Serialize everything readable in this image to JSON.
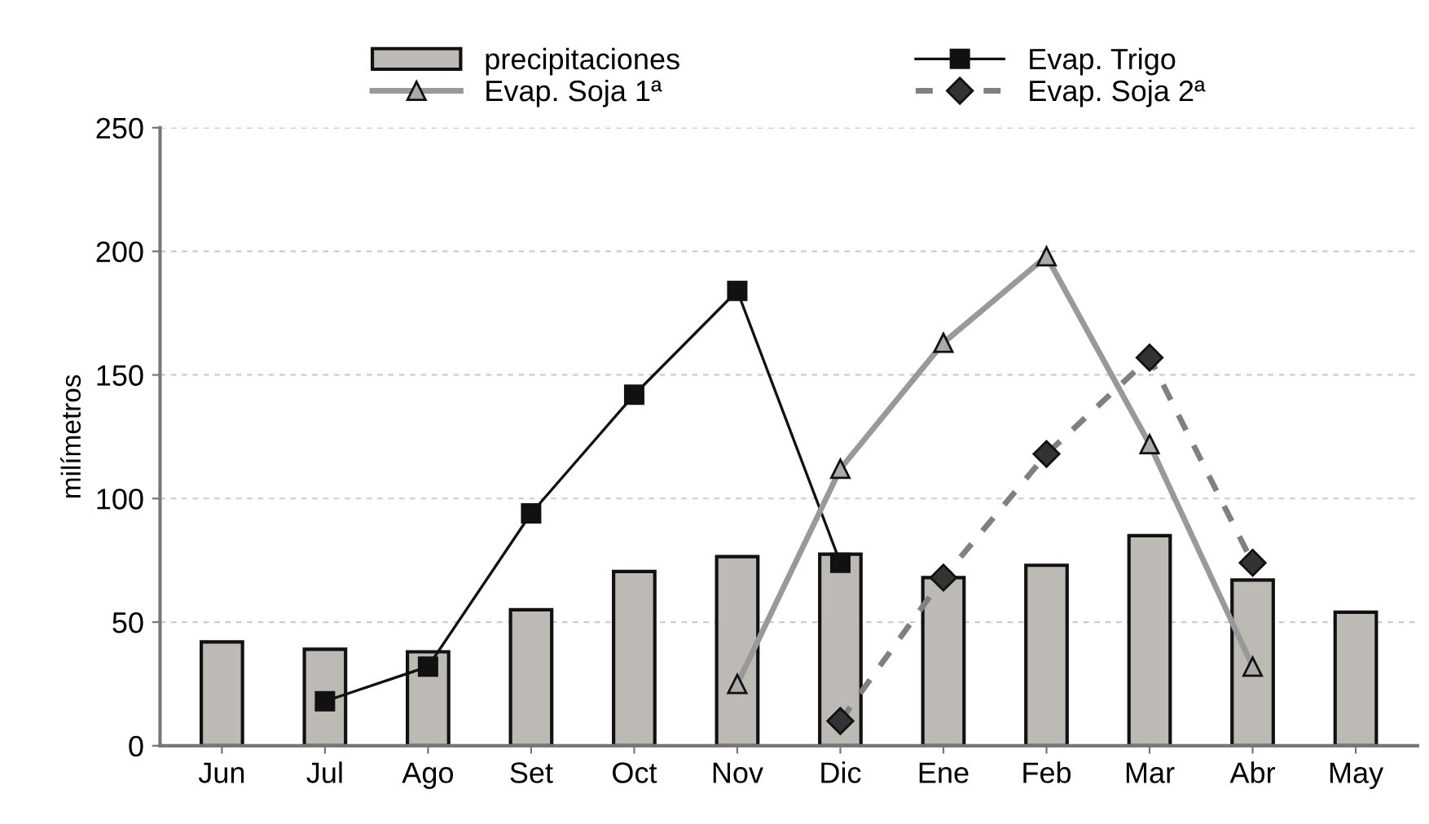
{
  "chart_data": {
    "type": "bar",
    "ylabel": "milímetros",
    "categories": [
      "Jun",
      "Jul",
      "Ago",
      "Set",
      "Oct",
      "Nov",
      "Dic",
      "Ene",
      "Feb",
      "Mar",
      "Abr",
      "May"
    ],
    "series": [
      {
        "name": "precipitaciones",
        "color": "#bdb9b4",
        "values": [
          42,
          39,
          38,
          55,
          70.5,
          76.5,
          77.5,
          68,
          73,
          85,
          67,
          54
        ]
      },
      {
        "name": "Evap. Trigo",
        "type": "line",
        "color": "#111111",
        "marker": "square",
        "line_style": "solid",
        "values": [
          null,
          18,
          32,
          94,
          142,
          184,
          74,
          null,
          null,
          null,
          null,
          null
        ]
      },
      {
        "name": "Evap. Soja 1ª",
        "type": "line",
        "color": "#999999",
        "marker": "triangle",
        "line_style": "solid",
        "values": [
          null,
          null,
          null,
          null,
          null,
          25,
          112,
          163,
          198,
          122,
          32,
          null
        ]
      },
      {
        "name": "Evap. Soja 2ª",
        "type": "line",
        "color": "#808080",
        "marker": "diamond",
        "line_style": "dashed",
        "values": [
          null,
          null,
          null,
          null,
          null,
          null,
          10,
          68,
          118,
          157,
          74,
          null
        ]
      }
    ],
    "ylim": [
      0,
      250
    ],
    "yticks": [
      0,
      50,
      100,
      150,
      200,
      250
    ],
    "grid": "y",
    "legend": "top"
  }
}
